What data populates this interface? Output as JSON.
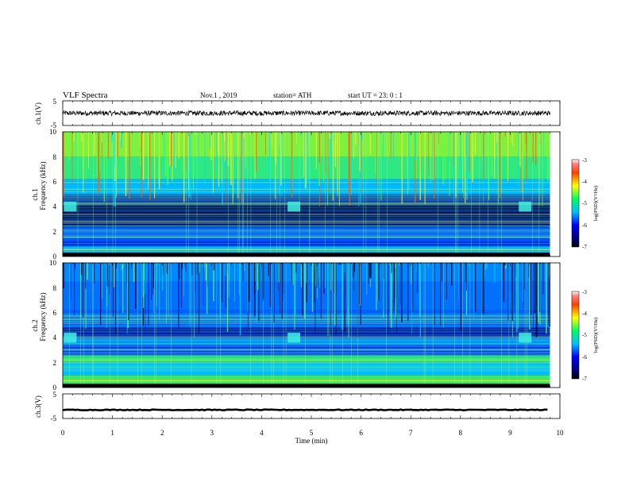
{
  "header": {
    "title": "VLF  Spectra",
    "date": "Nov.1  , 2019",
    "station": "station= ATH",
    "start_ut": "start  UT  =    23: 0   : 1"
  },
  "chart_data": [
    {
      "type": "line",
      "panel": "ch1-waveform",
      "ylabel": "ch.1(V)",
      "ylim": [
        -5,
        5
      ],
      "yticks": [
        "5",
        "-5"
      ],
      "xlim": [
        0,
        10
      ],
      "trace_level": 0,
      "trace_amplitude": 1.0,
      "trace_end": 9.8
    },
    {
      "type": "heatmap",
      "panel": "ch1-spectrogram",
      "ylabel_line1": "ch.1",
      "ylabel_line2": "Frequency  (kHz)",
      "ylim": [
        0,
        10
      ],
      "yticks": [
        "0",
        "2",
        "4",
        "6",
        "8",
        "10"
      ],
      "xlim": [
        0,
        10
      ],
      "data_end": 9.8,
      "colorbar": {
        "label": "log(PSD)(V²/Hz)",
        "range": [
          -7,
          -3
        ],
        "ticks": [
          "-3",
          "-4",
          "-5",
          "-6",
          "-7"
        ]
      },
      "patches_min": [
        0.15,
        4.65,
        9.3
      ],
      "patch_freq_khz": 4
    },
    {
      "type": "heatmap",
      "panel": "ch2-spectrogram",
      "ylabel_line1": "ch.2",
      "ylabel_line2": "Frequency  (kHz)",
      "ylim": [
        0,
        10
      ],
      "yticks": [
        "0",
        "2",
        "4",
        "6",
        "8",
        "10"
      ],
      "xlim": [
        0,
        10
      ],
      "data_end": 9.8,
      "colorbar": {
        "label": "log(PSD)(V²/Hz)",
        "range": [
          -7,
          -3
        ],
        "ticks": [
          "-3",
          "-4",
          "-5",
          "-6",
          "-7"
        ]
      },
      "patches_min": [
        0.15,
        4.65,
        9.3
      ],
      "patch_freq_khz": 4
    },
    {
      "type": "line",
      "panel": "ch3-waveform",
      "ylabel": "ch.3(V)",
      "ylim": [
        -5,
        5
      ],
      "yticks": [
        "5",
        "-5"
      ],
      "xlim": [
        0,
        10
      ],
      "trace_level": -1.5,
      "trace_amplitude": 0.15,
      "trace_end": 9.8,
      "xlabel": "Time  (min)",
      "xticks": [
        "0",
        "1",
        "2",
        "3",
        "4",
        "5",
        "6",
        "7",
        "8",
        "9",
        "10"
      ]
    }
  ]
}
